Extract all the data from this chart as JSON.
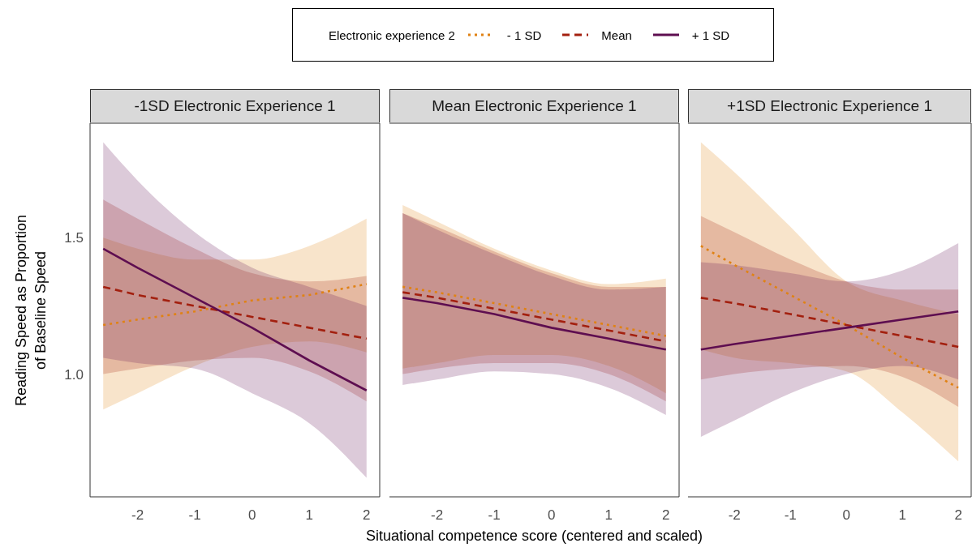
{
  "chart_data": [
    {
      "type": "line",
      "title": "-1SD Electronic Experience 1",
      "ylabel": "Reading Speed as Proportion of Baseline Speed",
      "legend_title": "Electronic experience 2",
      "legend": "top",
      "x": [
        -2.6,
        -2,
        -1,
        0,
        1,
        2
      ],
      "xlim": [
        -2.83,
        2.23
      ],
      "xticks": [
        -2,
        -1,
        0,
        1,
        2
      ],
      "ylim": [
        0.55,
        1.92
      ],
      "yticks": [
        {
          "value": 1,
          "label": "1.0"
        },
        1.5
      ],
      "grid": false,
      "series": [
        {
          "name": "- 1 SD",
          "color": "#e08214",
          "line_style": "dotted",
          "values": [
            1.18,
            1.2,
            1.23,
            1.27,
            1.29,
            1.33
          ],
          "lower": [
            0.87,
            0.93,
            1.03,
            1.1,
            1.12,
            1.08
          ],
          "upper": [
            1.5,
            1.46,
            1.42,
            1.42,
            1.47,
            1.57
          ]
        },
        {
          "name": "Mean",
          "color": "#a3200f",
          "line_style": "dashed",
          "values": [
            1.32,
            1.29,
            1.25,
            1.21,
            1.17,
            1.13
          ],
          "lower": [
            1.0,
            1.02,
            1.05,
            1.06,
            1.01,
            0.9
          ],
          "upper": [
            1.64,
            1.57,
            1.46,
            1.37,
            1.34,
            1.36
          ]
        },
        {
          "name": "+ 1 SD",
          "color": "#5e0e50",
          "line_style": "solid",
          "values": [
            1.46,
            1.39,
            1.28,
            1.17,
            1.05,
            0.94
          ],
          "lower": [
            1.06,
            1.04,
            1.02,
            0.93,
            0.82,
            0.62
          ],
          "upper": [
            1.85,
            1.71,
            1.52,
            1.39,
            1.32,
            1.25
          ]
        }
      ]
    },
    {
      "type": "line",
      "title": "Mean Electronic Experience 1",
      "xlabel": "Situational competence score (centered and scaled)",
      "x": [
        -2.6,
        -2,
        -1,
        0,
        1,
        2
      ],
      "xlim": [
        -2.83,
        2.23
      ],
      "xticks": [
        -2,
        -1,
        0,
        1,
        2
      ],
      "ylim": [
        0.55,
        1.92
      ],
      "tick_labels": "x",
      "grid": false,
      "series": [
        {
          "color": "#e08214",
          "line_style": "dotted",
          "values": [
            1.32,
            1.3,
            1.26,
            1.22,
            1.18,
            1.14
          ],
          "lower": [
            1.02,
            1.04,
            1.07,
            1.07,
            1.03,
            0.93
          ],
          "upper": [
            1.62,
            1.56,
            1.46,
            1.38,
            1.33,
            1.35
          ]
        },
        {
          "color": "#a3200f",
          "line_style": "dashed",
          "values": [
            1.3,
            1.28,
            1.24,
            1.2,
            1.16,
            1.12
          ],
          "lower": [
            1.0,
            1.02,
            1.04,
            1.04,
            1.0,
            0.9
          ],
          "upper": [
            1.59,
            1.54,
            1.45,
            1.37,
            1.32,
            1.32
          ]
        },
        {
          "color": "#5e0e50",
          "line_style": "solid",
          "values": [
            1.28,
            1.26,
            1.22,
            1.17,
            1.13,
            1.09
          ],
          "lower": [
            0.96,
            0.98,
            1.01,
            1.0,
            0.95,
            0.85
          ],
          "upper": [
            1.59,
            1.53,
            1.44,
            1.36,
            1.31,
            1.32
          ]
        }
      ]
    },
    {
      "type": "line",
      "title": "+1SD Electronic Experience 1",
      "x": [
        -2.6,
        -2,
        -1,
        0,
        1,
        2
      ],
      "xlim": [
        -2.83,
        2.23
      ],
      "xticks": [
        -2,
        -1,
        0,
        1,
        2
      ],
      "ylim": [
        0.55,
        1.92
      ],
      "tick_labels": "x",
      "grid": false,
      "series": [
        {
          "color": "#e08214",
          "line_style": "dotted",
          "values": [
            1.47,
            1.4,
            1.29,
            1.18,
            1.06,
            0.95
          ],
          "lower": [
            1.09,
            1.06,
            1.04,
            1.01,
            0.86,
            0.68
          ],
          "upper": [
            1.85,
            1.74,
            1.54,
            1.34,
            1.27,
            1.22
          ]
        },
        {
          "color": "#a3200f",
          "line_style": "dashed",
          "values": [
            1.28,
            1.26,
            1.22,
            1.18,
            1.14,
            1.1
          ],
          "lower": [
            0.98,
            1.0,
            1.02,
            1.03,
            0.99,
            0.88
          ],
          "upper": [
            1.58,
            1.52,
            1.42,
            1.34,
            1.31,
            1.31
          ]
        },
        {
          "color": "#5e0e50",
          "line_style": "solid",
          "values": [
            1.09,
            1.11,
            1.14,
            1.17,
            1.2,
            1.23
          ],
          "lower": [
            0.77,
            0.83,
            0.93,
            1.0,
            1.03,
            0.98
          ],
          "upper": [
            1.41,
            1.4,
            1.37,
            1.34,
            1.38,
            1.48
          ]
        }
      ]
    }
  ]
}
